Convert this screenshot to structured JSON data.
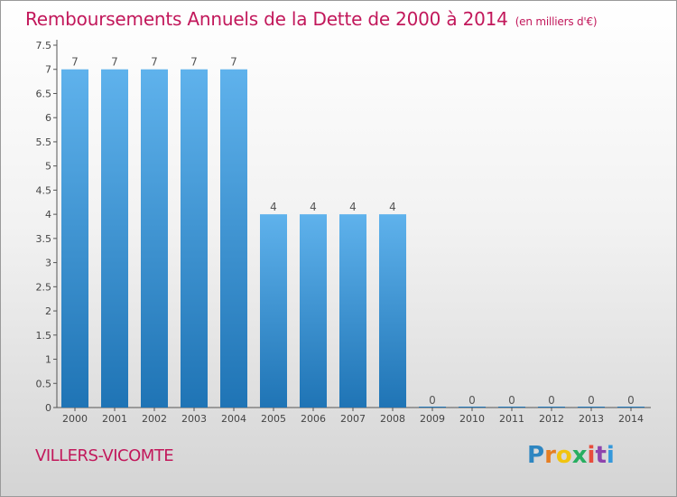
{
  "chart_data": {
    "type": "bar",
    "title": "Remboursements Annuels de la Dette de 2000 à 2014",
    "unit_note": "(en milliers d'€)",
    "categories": [
      "2000",
      "2001",
      "2002",
      "2003",
      "2004",
      "2005",
      "2006",
      "2007",
      "2008",
      "2009",
      "2010",
      "2011",
      "2012",
      "2013",
      "2014"
    ],
    "values": [
      7,
      7,
      7,
      7,
      7,
      4,
      4,
      4,
      4,
      0,
      0,
      0,
      0,
      0,
      0
    ],
    "ylim": [
      0,
      7.5
    ],
    "yticks": [
      "0",
      "0.5",
      "1",
      "1.5",
      "2",
      "2.5",
      "3",
      "3.5",
      "4",
      "4.5",
      "5",
      "5.5",
      "6",
      "6.5",
      "7",
      "7.5"
    ],
    "grid": false,
    "colors": {
      "bar_top": "#5fb2ec",
      "bar_bottom": "#1f74b5",
      "label": "#555555"
    }
  },
  "town_name": "VILLERS-VICOMTE",
  "logo": {
    "letters": [
      "P",
      "r",
      "o",
      "x",
      "i",
      "t",
      "i"
    ],
    "colors": [
      "#2e86c1",
      "#e67e22",
      "#f1c40f",
      "#27ae60",
      "#e74c3c",
      "#8e44ad",
      "#3498db"
    ]
  }
}
